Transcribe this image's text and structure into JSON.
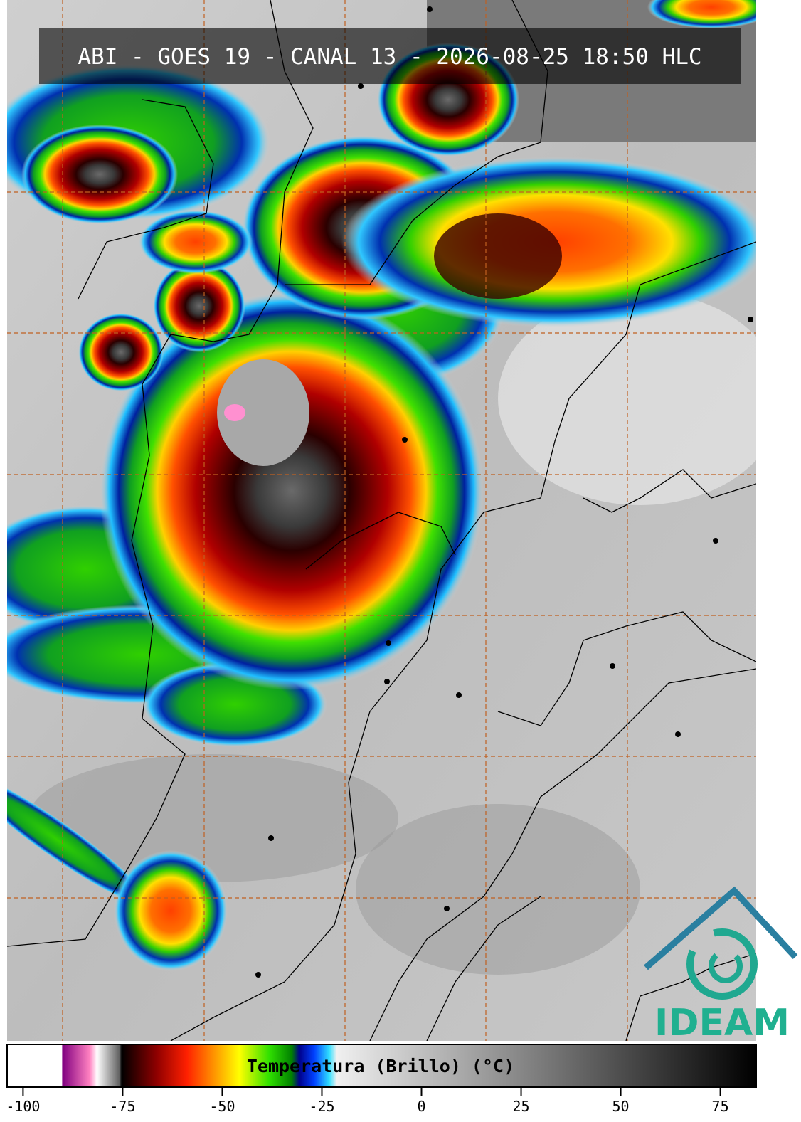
{
  "title": "ABI - GOES 19 - CANAL 13 - 2026-08-25 18:50 HLC",
  "colorbar": {
    "label": "Temperatura (Brillo) (°C)",
    "lim": [
      -104,
      84
    ],
    "ticks": [
      -100,
      -75,
      -50,
      -25,
      0,
      25,
      50,
      75
    ]
  },
  "logo": "IDEAM"
}
